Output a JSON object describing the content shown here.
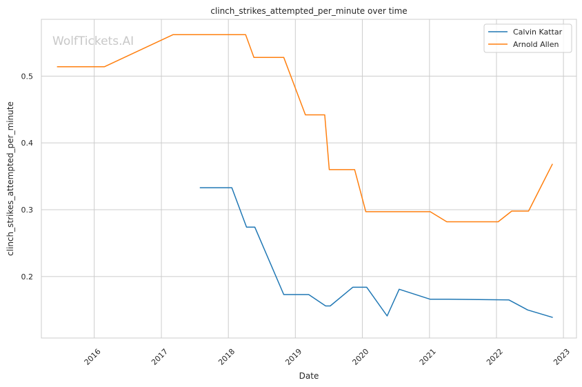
{
  "chart_data": {
    "type": "line",
    "title": "clinch_strikes_attempted_per_minute over time",
    "xlabel": "Date",
    "ylabel": "clinch_strikes_attempted_per_minute",
    "watermark": "WolfTickets.AI",
    "x_ticks": [
      "2016",
      "2017",
      "2018",
      "2019",
      "2020",
      "2021",
      "2022",
      "2023"
    ],
    "y_ticks": [
      "0.2",
      "0.3",
      "0.4",
      "0.5"
    ],
    "xlim": [
      "2015-03-19",
      "2023-03-13"
    ],
    "ylim": [
      0.108,
      0.585
    ],
    "grid": true,
    "legend_position": "top-right",
    "colors": {
      "calvin": "#1f77b4",
      "arnold": "#ff7f0e",
      "grid": "#cccccc",
      "spine": "#cccccc"
    },
    "series": [
      {
        "name": "Calvin Kattar",
        "color": "#1f77b4",
        "points": [
          [
            "2017-08-01",
            0.333
          ],
          [
            "2018-01-20",
            0.333
          ],
          [
            "2018-04-10",
            0.274
          ],
          [
            "2018-05-25",
            0.274
          ],
          [
            "2018-10-30",
            0.173
          ],
          [
            "2019-03-15",
            0.173
          ],
          [
            "2019-06-15",
            0.156
          ],
          [
            "2019-07-10",
            0.156
          ],
          [
            "2019-11-10",
            0.184
          ],
          [
            "2020-01-25",
            0.184
          ],
          [
            "2020-05-15",
            0.141
          ],
          [
            "2020-07-20",
            0.181
          ],
          [
            "2021-01-05",
            0.166
          ],
          [
            "2021-04-15",
            0.166
          ],
          [
            "2022-03-10",
            0.165
          ],
          [
            "2022-06-20",
            0.15
          ],
          [
            "2022-11-01",
            0.139
          ]
        ]
      },
      {
        "name": "Arnold Allen",
        "color": "#ff7f0e",
        "points": [
          [
            "2015-06-15",
            0.514
          ],
          [
            "2016-02-25",
            0.514
          ],
          [
            "2017-03-05",
            0.562
          ],
          [
            "2018-04-05",
            0.562
          ],
          [
            "2018-05-20",
            0.528
          ],
          [
            "2018-10-30",
            0.528
          ],
          [
            "2019-02-25",
            0.442
          ],
          [
            "2019-06-10",
            0.442
          ],
          [
            "2019-07-05",
            0.36
          ],
          [
            "2019-11-20",
            0.36
          ],
          [
            "2020-01-20",
            0.297
          ],
          [
            "2021-01-05",
            0.297
          ],
          [
            "2021-04-05",
            0.282
          ],
          [
            "2022-01-10",
            0.282
          ],
          [
            "2022-03-25",
            0.298
          ],
          [
            "2022-06-25",
            0.298
          ],
          [
            "2022-11-01",
            0.368
          ]
        ]
      }
    ]
  }
}
